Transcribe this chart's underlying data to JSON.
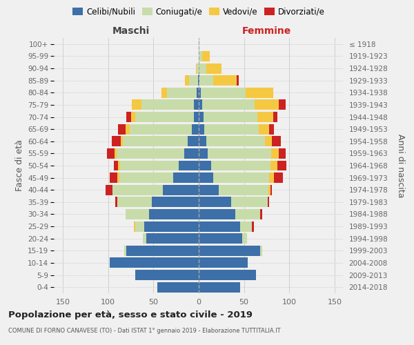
{
  "age_groups": [
    "0-4",
    "5-9",
    "10-14",
    "15-19",
    "20-24",
    "25-29",
    "30-34",
    "35-39",
    "40-44",
    "45-49",
    "50-54",
    "55-59",
    "60-64",
    "65-69",
    "70-74",
    "75-79",
    "80-84",
    "85-89",
    "90-94",
    "95-99",
    "100+"
  ],
  "birth_years": [
    "2014-2018",
    "2009-2013",
    "2004-2008",
    "1999-2003",
    "1994-1998",
    "1989-1993",
    "1984-1988",
    "1979-1983",
    "1974-1978",
    "1969-1973",
    "1964-1968",
    "1959-1963",
    "1954-1958",
    "1949-1953",
    "1944-1948",
    "1939-1943",
    "1934-1938",
    "1929-1933",
    "1924-1928",
    "1919-1923",
    "≤ 1918"
  ],
  "males_celibi": [
    46,
    70,
    98,
    80,
    58,
    60,
    55,
    52,
    40,
    28,
    22,
    16,
    12,
    8,
    5,
    5,
    2,
    1,
    0,
    0,
    0
  ],
  "males_coniugati": [
    0,
    0,
    0,
    2,
    4,
    10,
    26,
    38,
    55,
    60,
    65,
    75,
    72,
    68,
    65,
    58,
    33,
    10,
    2,
    0,
    0
  ],
  "males_vedovi": [
    0,
    0,
    0,
    0,
    0,
    2,
    0,
    0,
    0,
    2,
    2,
    2,
    2,
    5,
    5,
    11,
    6,
    4,
    1,
    0,
    0
  ],
  "males_divorziati": [
    0,
    0,
    0,
    0,
    0,
    0,
    0,
    2,
    8,
    8,
    5,
    8,
    10,
    8,
    5,
    0,
    0,
    0,
    0,
    0,
    0
  ],
  "females_nubili": [
    46,
    63,
    54,
    68,
    48,
    46,
    40,
    36,
    22,
    16,
    14,
    10,
    8,
    6,
    5,
    4,
    2,
    1,
    0,
    0,
    0
  ],
  "females_coniugate": [
    0,
    0,
    0,
    2,
    5,
    13,
    28,
    40,
    55,
    62,
    65,
    70,
    65,
    60,
    60,
    58,
    50,
    15,
    8,
    4,
    0
  ],
  "females_vedove": [
    0,
    0,
    0,
    0,
    0,
    0,
    0,
    0,
    2,
    5,
    8,
    8,
    8,
    12,
    17,
    26,
    30,
    26,
    17,
    8,
    0
  ],
  "females_divorziate": [
    0,
    0,
    0,
    0,
    0,
    2,
    2,
    2,
    2,
    10,
    10,
    8,
    10,
    5,
    5,
    8,
    0,
    2,
    0,
    0,
    0
  ],
  "color_celibi": "#3d6fa8",
  "color_coniugati": "#c8dcaa",
  "color_vedovi": "#f5c842",
  "color_divorziati": "#cc2222",
  "bg_color": "#f0f0f0",
  "grid_color": "#d0d0d0",
  "xlim": 160,
  "title": "Popolazione per età, sesso e stato civile - 2019",
  "subtitle": "COMUNE DI FORNO CANAVESE (TO) - Dati ISTAT 1° gennaio 2019 - Elaborazione TUTTITALIA.IT",
  "ylabel_left": "Fasce di età",
  "ylabel_right": "Anni di nascita",
  "label_maschi": "Maschi",
  "label_femmine": "Femmine",
  "color_maschi": "#444444",
  "color_femmine": "#cc2222",
  "legend_labels": [
    "Celibi/Nubili",
    "Coniugati/e",
    "Vedovi/e",
    "Divorziati/e"
  ]
}
